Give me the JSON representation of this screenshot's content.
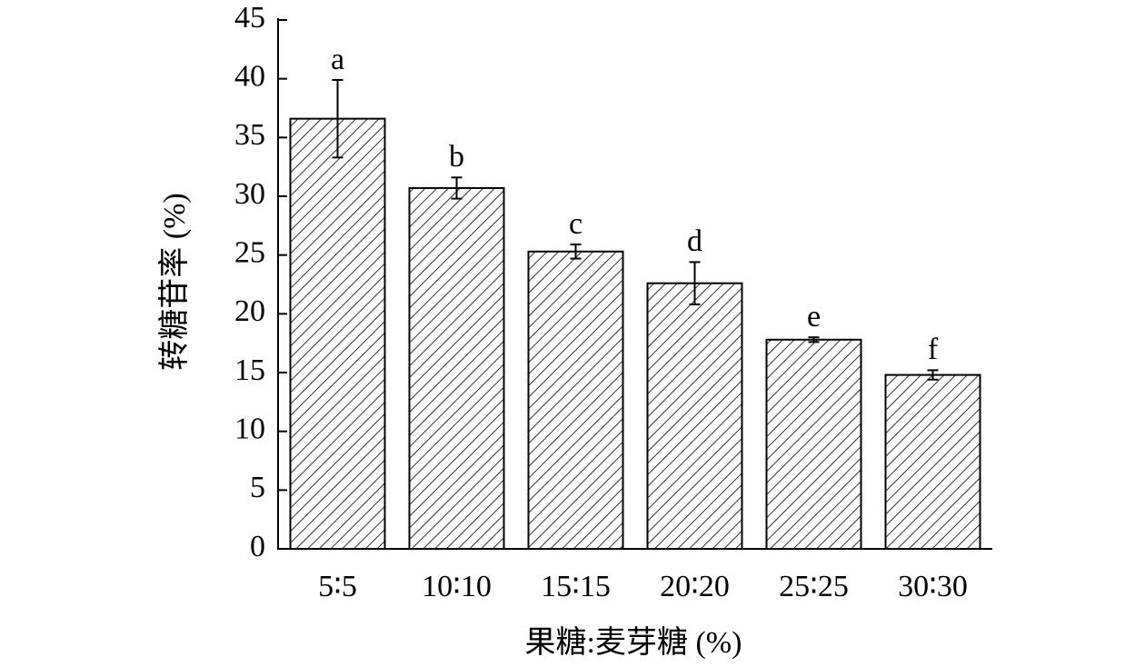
{
  "chart_data": {
    "type": "bar",
    "x_label": "果糖:麦芽糖 (%)",
    "y_label": "转糖苷率 (%)",
    "categories": [
      "5∶5",
      "10∶10",
      "15∶15",
      "20∶20",
      "25∶25",
      "30∶30"
    ],
    "values": [
      36.6,
      30.7,
      25.3,
      22.6,
      17.8,
      14.8
    ],
    "errors": [
      3.3,
      0.9,
      0.6,
      1.8,
      0.2,
      0.4
    ],
    "letters": [
      "a",
      "b",
      "c",
      "d",
      "e",
      "f"
    ],
    "color": "#ffffff",
    "ylim": [
      0,
      45
    ],
    "yticks": [
      0,
      5,
      10,
      15,
      20,
      25,
      30,
      35,
      40,
      45
    ],
    "grid": false
  }
}
